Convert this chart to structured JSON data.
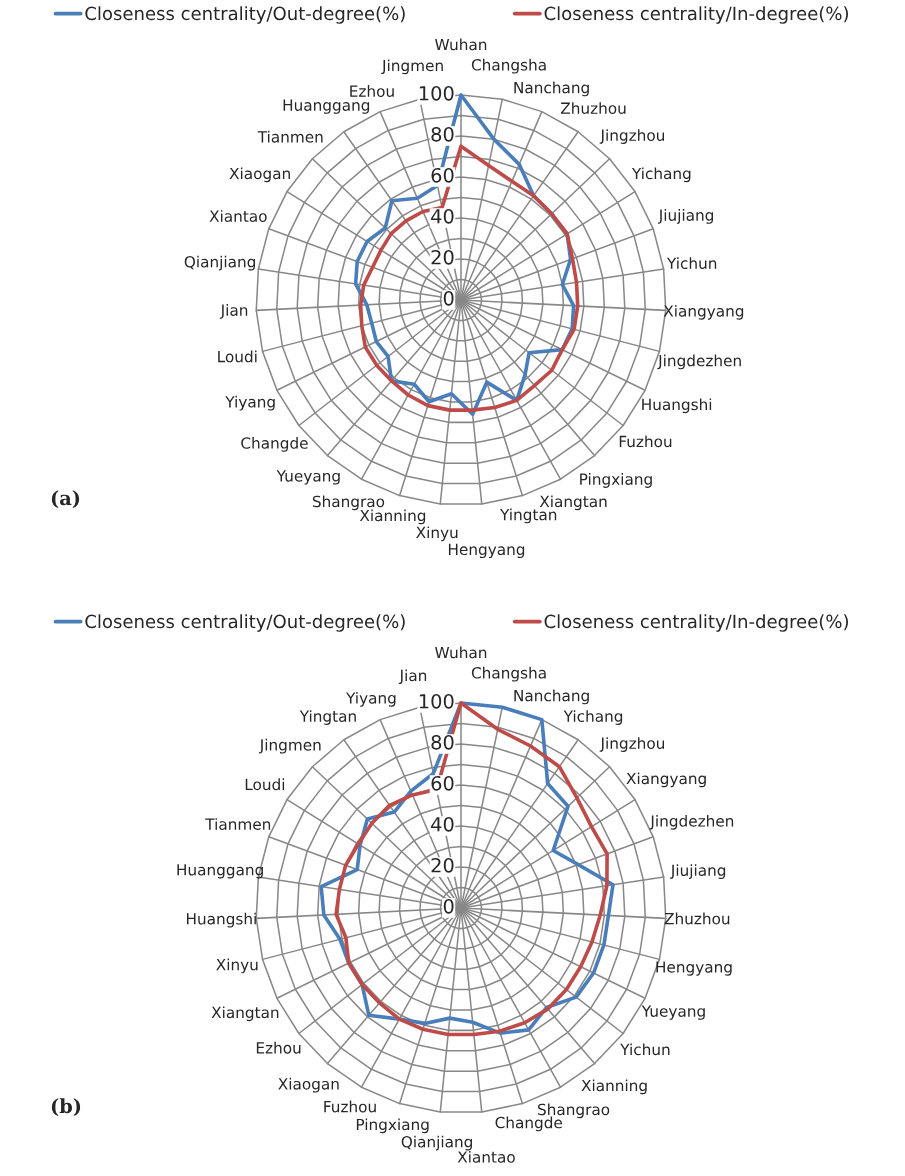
{
  "chart_data": [
    {
      "type": "radar",
      "legend": "top",
      "grid": true,
      "marker": "none",
      "line_style": "solid",
      "categories": [
        "Wuhan",
        "Changsha",
        "Nanchang",
        "Zhuzhou",
        "Jingzhou",
        "Yichang",
        "Jiujiang",
        "Yichun",
        "Xiangyang",
        "Jingdezhen",
        "Huangshi",
        "Fuzhou",
        "Pingxiang",
        "Xiangtan",
        "Yingtan",
        "Hengyang",
        "Xinyu",
        "Xianning",
        "Shangrao",
        "Yueyang",
        "Changde",
        "Yiyang",
        "Loudi",
        "Jian",
        "Qianjiang",
        "Xiantao",
        "Xiaogan",
        "Tianmen",
        "Huanggang",
        "Ezhou",
        "Jingmen"
      ],
      "ylim": [
        0,
        100
      ],
      "yticks": [
        0,
        20,
        40,
        60,
        80,
        100
      ],
      "series": [
        {
          "name": "Closeness centrality/Out-degree(%)",
          "color": "#4a7ebb",
          "values": [
            100,
            80,
            72,
            62,
            61,
            61,
            57,
            50,
            55,
            56,
            55,
            42,
            48,
            56,
            42,
            56,
            46,
            52,
            47,
            52,
            45,
            46,
            45,
            46,
            52,
            54,
            54,
            51,
            59,
            54,
            57
          ]
        },
        {
          "name": "Closeness centrality/In-degree(%)",
          "color": "#be4b48",
          "values": [
            75,
            67,
            63,
            62,
            61,
            61,
            58,
            57,
            57,
            57,
            55,
            56,
            55,
            56,
            55,
            54,
            54,
            54,
            53,
            52,
            52,
            52,
            50,
            49,
            48,
            46,
            46,
            47,
            47,
            47,
            46
          ]
        }
      ],
      "annotations": [
        "(a)"
      ]
    },
    {
      "type": "radar",
      "legend": "top",
      "grid": true,
      "marker": "none",
      "line_style": "solid",
      "categories": [
        "Wuhan",
        "Changsha",
        "Nanchang",
        "Yichang",
        "Jingzhou",
        "Xiangyang",
        "Jingdezhen",
        "Jiujiang",
        "Zhuzhou",
        "Hengyang",
        "Yueyang",
        "Yichun",
        "Xianning",
        "Shangrao",
        "Changde",
        "Xiantao",
        "Qianjiang",
        "Pingxiang",
        "Fuzhou",
        "Xiaogan",
        "Ezhou",
        "Xiangtan",
        "Xinyu",
        "Huangshi",
        "Huanggang",
        "Tianmen",
        "Loudi",
        "Jingmen",
        "Yingtan",
        "Yiyang",
        "Jian"
      ],
      "ylim": [
        0,
        100
      ],
      "yticks": [
        0,
        20,
        40,
        60,
        80,
        100
      ],
      "series": [
        {
          "name": "Closeness centrality/Out-degree(%)",
          "color": "#4a7ebb",
          "values": [
            100,
            100,
            100,
            74,
            72,
            53,
            61,
            75,
            72,
            72,
            72,
            71,
            64,
            68,
            64,
            56,
            54,
            59,
            62,
            69,
            61,
            61,
            61,
            67,
            69,
            54,
            58,
            63,
            57,
            62,
            67
          ]
        },
        {
          "name": "Closeness centrality/In-degree(%)",
          "color": "#be4b48",
          "values": [
            100,
            89,
            86,
            84,
            78,
            75,
            76,
            72,
            68,
            66,
            65,
            65,
            65,
            64,
            63,
            62,
            62,
            62,
            62,
            61,
            61,
            61,
            58,
            61,
            60,
            60,
            59,
            60,
            61,
            60,
            59
          ]
        }
      ],
      "annotations": [
        "(b)"
      ]
    }
  ]
}
